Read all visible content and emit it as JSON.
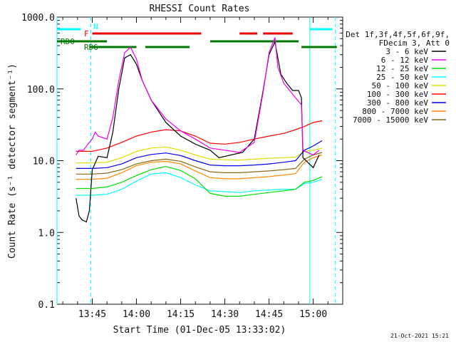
{
  "chart_data": {
    "type": "line",
    "title": "RHESSI Count Rates",
    "xlabel": "Start Time (01-Dec-05 13:33:02)",
    "ylabel": "Count Rate (s⁻¹ detector segment⁻¹)",
    "x_unit": "minutes",
    "xlim": [
      "13:33:02",
      "15:10:00"
    ],
    "ylim": [
      0.1,
      1000
    ],
    "yscale": "log",
    "x_ticks": [
      "13:45",
      "14:00",
      "14:15",
      "14:30",
      "14:45",
      "15:00"
    ],
    "y_ticks": [
      "0.1",
      "1.0",
      "10.0",
      "100.0",
      "1000.0"
    ],
    "legend_header": [
      "Det 1f,3f,4f,5f,6f,9f,",
      "FDecim 3, Att 0"
    ],
    "legend_position": "right",
    "series": [
      {
        "name": "3 - 6 keV",
        "color": "#000000",
        "x": [
          "13:39:30",
          "13:40:30",
          "13:41:30",
          "13:43:00",
          "13:44:00",
          "13:45:00",
          "13:47:00",
          "13:50:00",
          "13:52:00",
          "13:54:00",
          "13:56:00",
          "13:58:00",
          "14:00:00",
          "14:02:00",
          "14:05:00",
          "14:10:00",
          "14:15:00",
          "14:20:00",
          "14:25:00",
          "14:28:00",
          "14:32:00",
          "14:36:00",
          "14:40:00",
          "14:43:00",
          "14:45:00",
          "14:47:00",
          "14:49:00",
          "14:51:00",
          "14:53:00",
          "14:55:00",
          "14:56:00",
          "14:56:30",
          "15:00:00",
          "15:02:00"
        ],
        "y": [
          3,
          1.7,
          1.5,
          1.4,
          2,
          7.5,
          11.5,
          11,
          25,
          100,
          270,
          300,
          220,
          130,
          70,
          34,
          22,
          17,
          14,
          11,
          12,
          13,
          20,
          95,
          300,
          450,
          160,
          120,
          95,
          95,
          75,
          11,
          8,
          12
        ]
      },
      {
        "name": "6 - 12 keV",
        "color": "#ee00ee",
        "x": [
          "13:39:30",
          "13:40:30",
          "13:42:00",
          "13:44:00",
          "13:45:00",
          "13:46:00",
          "13:47:00",
          "13:50:00",
          "13:52:00",
          "13:54:00",
          "13:56:00",
          "13:58:00",
          "14:00:00",
          "14:02:00",
          "14:05:00",
          "14:10:00",
          "14:15:00",
          "14:20:00",
          "14:25:00",
          "14:30:00",
          "14:35:00",
          "14:40:00",
          "14:43:00",
          "14:45:00",
          "14:47:00",
          "14:48:00",
          "14:50:00",
          "14:52:00",
          "14:54:00",
          "14:56:00",
          "14:56:30",
          "15:00:00",
          "15:02:00"
        ],
        "y": [
          12,
          14,
          14,
          18,
          20,
          25,
          22,
          20,
          40,
          130,
          320,
          380,
          260,
          130,
          70,
          38,
          26,
          20,
          15,
          14,
          13,
          18,
          90,
          320,
          520,
          200,
          120,
          95,
          75,
          60,
          14,
          12,
          14
        ]
      },
      {
        "name": "12 - 25 keV",
        "color": "#00dd00",
        "x": [
          "13:39:30",
          "13:45:00",
          "13:50:00",
          "13:55:00",
          "14:00:00",
          "14:05:00",
          "14:10:00",
          "14:15:00",
          "14:20:00",
          "14:25:00",
          "14:30:00",
          "14:35:00",
          "14:40:00",
          "14:45:00",
          "14:50:00",
          "14:54:00",
          "14:57:00",
          "15:00:00",
          "15:03:00"
        ],
        "y": [
          4.1,
          4.1,
          4.3,
          5.0,
          6.2,
          7.5,
          8.3,
          7.3,
          5.6,
          3.5,
          3.2,
          3.2,
          3.4,
          3.6,
          3.8,
          4.0,
          5.0,
          5.3,
          6.0
        ]
      },
      {
        "name": "25 - 50 keV",
        "color": "#00ffff",
        "x": [
          "13:39:30",
          "13:45:00",
          "13:50:00",
          "13:55:00",
          "14:00:00",
          "14:05:00",
          "14:10:00",
          "14:15:00",
          "14:20:00",
          "14:25:00",
          "14:30:00",
          "14:35:00",
          "14:40:00",
          "14:45:00",
          "14:50:00",
          "14:54:00",
          "14:57:00",
          "15:00:00",
          "15:03:00"
        ],
        "y": [
          3.3,
          3.3,
          3.4,
          4.0,
          5.2,
          6.5,
          6.8,
          5.8,
          4.6,
          3.8,
          3.7,
          3.6,
          3.8,
          3.9,
          4.0,
          4.0,
          4.8,
          5.0,
          5.5
        ]
      },
      {
        "name": "50 - 100 keV",
        "color": "#dddd00",
        "x": [
          "13:39:30",
          "13:45:00",
          "13:50:00",
          "13:55:00",
          "14:00:00",
          "14:05:00",
          "14:10:00",
          "14:15:00",
          "14:20:00",
          "14:25:00",
          "14:30:00",
          "14:35:00",
          "14:40:00",
          "14:45:00",
          "14:50:00",
          "14:54:00",
          "14:57:00",
          "15:00:00",
          "15:03:00"
        ],
        "y": [
          9.3,
          9.3,
          9.5,
          11.0,
          13.5,
          15.0,
          15.5,
          14.0,
          12.0,
          10.5,
          10.3,
          10.2,
          10.5,
          10.8,
          11.0,
          11.2,
          13.5,
          14.0,
          15.0
        ]
      },
      {
        "name": "100 - 300 keV",
        "color": "#ff0000",
        "x": [
          "13:39:30",
          "13:45:00",
          "13:50:00",
          "13:55:00",
          "14:00:00",
          "14:05:00",
          "14:10:00",
          "14:15:00",
          "14:20:00",
          "14:25:00",
          "14:30:00",
          "14:35:00",
          "14:40:00",
          "14:45:00",
          "14:50:00",
          "14:54:00",
          "14:57:00",
          "15:00:00",
          "15:03:00"
        ],
        "y": [
          13.5,
          13.5,
          15.0,
          18.0,
          22.0,
          25.0,
          27.0,
          26.0,
          22.0,
          17.5,
          17.0,
          18.0,
          20.0,
          22.0,
          24.0,
          27.0,
          30.0,
          34.0,
          36.0
        ]
      },
      {
        "name": "300 - 800 keV",
        "color": "#0000ee",
        "x": [
          "13:39:30",
          "13:45:00",
          "13:50:00",
          "13:55:00",
          "14:00:00",
          "14:05:00",
          "14:10:00",
          "14:15:00",
          "14:20:00",
          "14:25:00",
          "14:30:00",
          "14:35:00",
          "14:40:00",
          "14:45:00",
          "14:50:00",
          "14:54:00",
          "14:57:00",
          "15:00:00",
          "15:03:00"
        ],
        "y": [
          7.8,
          7.8,
          8.0,
          9.0,
          11.0,
          12.2,
          12.8,
          11.8,
          10.0,
          8.7,
          8.5,
          8.5,
          8.7,
          9.0,
          9.5,
          10.0,
          14.0,
          16.0,
          19.0
        ]
      },
      {
        "name": "800 - 7000 keV",
        "color": "#ff8800",
        "x": [
          "13:39:30",
          "13:45:00",
          "13:50:00",
          "13:55:00",
          "14:00:00",
          "14:05:00",
          "14:10:00",
          "14:15:00",
          "14:20:00",
          "14:25:00",
          "14:30:00",
          "14:35:00",
          "14:40:00",
          "14:45:00",
          "14:50:00",
          "14:54:00",
          "14:57:00",
          "15:00:00",
          "15:03:00"
        ],
        "y": [
          5.5,
          5.5,
          5.7,
          6.8,
          8.5,
          9.5,
          9.8,
          9.0,
          7.2,
          5.8,
          5.6,
          5.6,
          5.8,
          6.0,
          6.3,
          6.6,
          9.5,
          11.0,
          12.0
        ]
      },
      {
        "name": "7000 - 15000 keV",
        "color": "#8b6914",
        "x": [
          "13:39:30",
          "13:45:00",
          "13:50:00",
          "13:55:00",
          "14:00:00",
          "14:05:00",
          "14:10:00",
          "14:15:00",
          "14:20:00",
          "14:25:00",
          "14:30:00",
          "14:35:00",
          "14:40:00",
          "14:45:00",
          "14:50:00",
          "14:54:00",
          "14:57:00",
          "15:00:00",
          "15:03:00"
        ],
        "y": [
          6.5,
          6.5,
          6.7,
          7.5,
          9.0,
          10.0,
          10.5,
          9.8,
          8.2,
          7.0,
          6.8,
          6.8,
          7.0,
          7.2,
          7.5,
          7.8,
          10.5,
          12.0,
          13.0
        ]
      }
    ],
    "flag_bars": [
      {
        "label": "",
        "color": "#00ffff",
        "segments": [
          [
            "13:33:02",
            "13:41:00"
          ],
          [
            "14:59:00",
            "15:06:30"
          ]
        ]
      },
      {
        "label": "N",
        "color": "#00ffff",
        "segments": []
      },
      {
        "label": "F",
        "color": "#ee0000",
        "segments": [
          [
            "13:45:00",
            "14:22:00"
          ],
          [
            "14:35:00",
            "14:41:00"
          ],
          [
            "14:43:00",
            "14:53:00"
          ]
        ]
      },
      {
        "label": "RD0",
        "color": "#007700",
        "segments": [
          [
            "13:33:02",
            "13:50:00"
          ],
          [
            "14:25:00",
            "14:55:00"
          ]
        ]
      },
      {
        "label": "RD6",
        "color": "#007700",
        "segments": [
          [
            "13:44:00",
            "14:00:00"
          ],
          [
            "14:03:00",
            "14:18:00"
          ],
          [
            "14:56:00",
            "15:08:00"
          ]
        ]
      }
    ],
    "vertical_lines": [
      {
        "time": "13:33:02",
        "color": "#00ffff",
        "style": "solid"
      },
      {
        "time": "13:44:30",
        "color": "#00ffff",
        "style": "dashed"
      },
      {
        "time": "14:58:50",
        "color": "#00ffff",
        "style": "solid"
      },
      {
        "time": "15:07:30",
        "color": "#00ffff",
        "style": "dashed"
      }
    ]
  },
  "footer": {
    "timestamp": "21-Oct-2021 15:21"
  }
}
